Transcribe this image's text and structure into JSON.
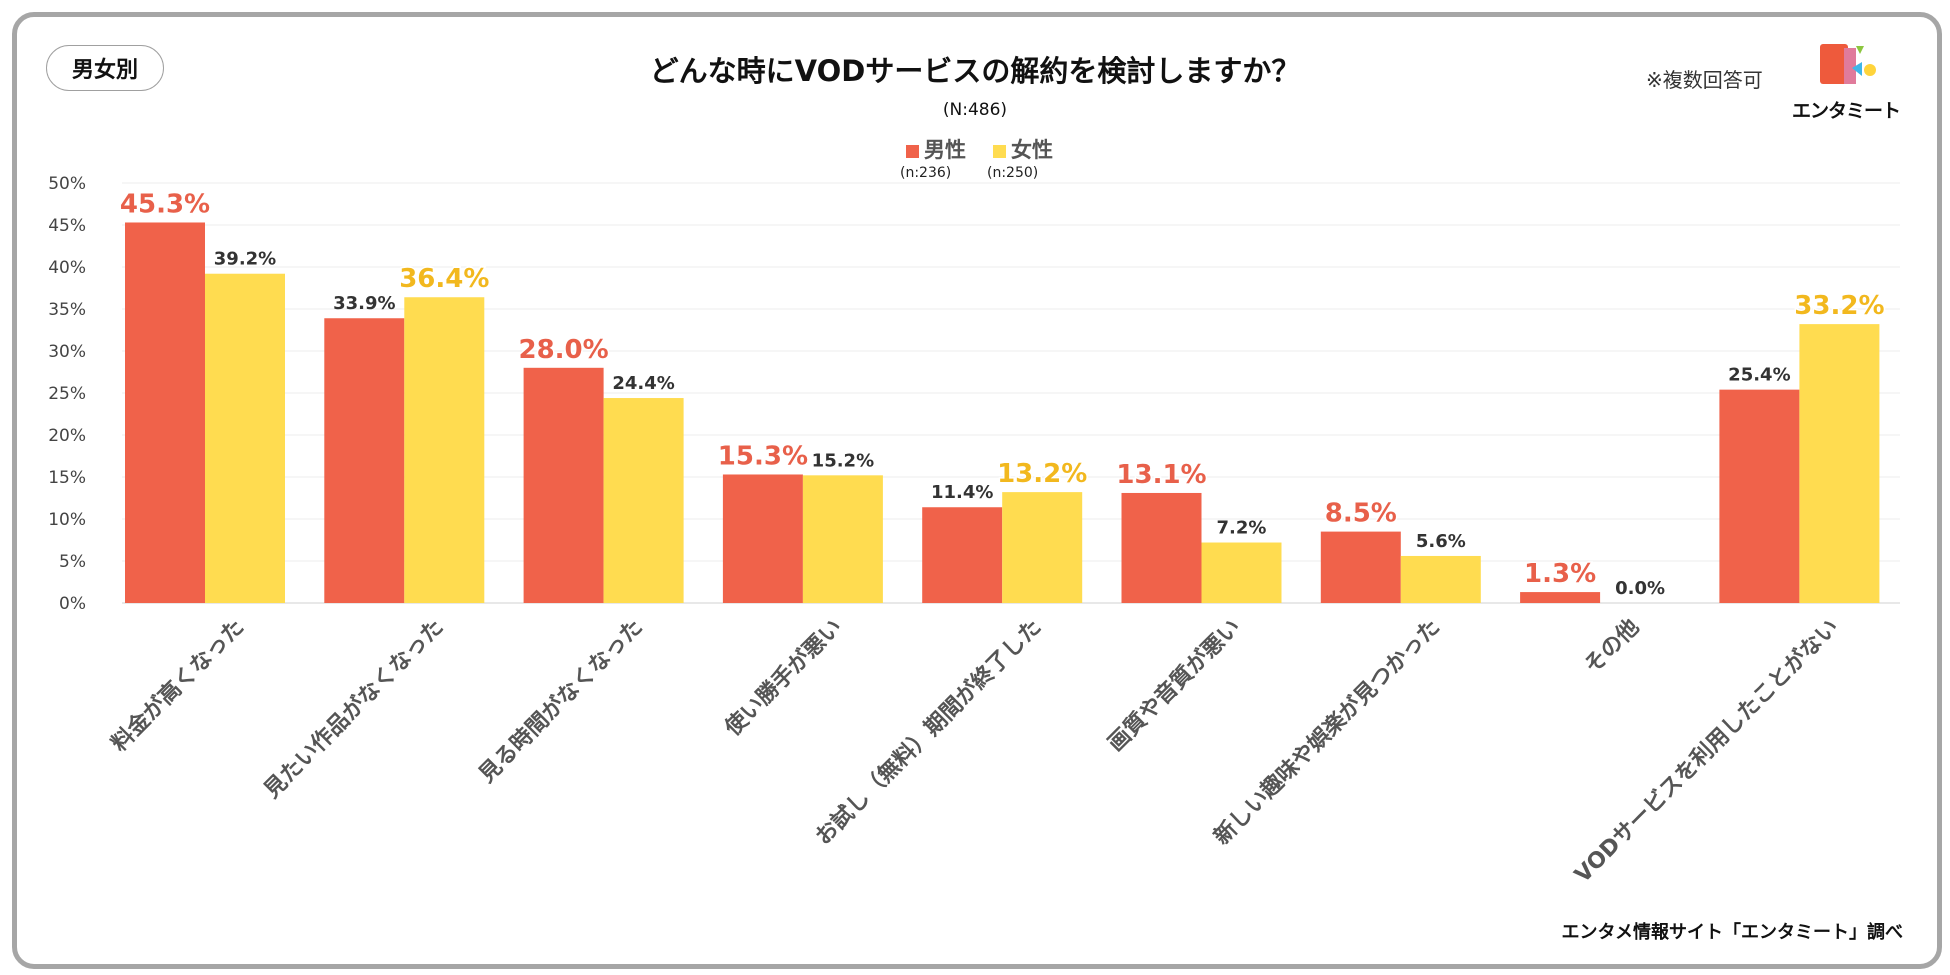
{
  "badge": "男女別",
  "note": "※複数回答可",
  "logo": {
    "text": "エンタミート"
  },
  "credit": "エンタメ情報サイト「エンタミート」調べ",
  "colors": {
    "male": "#F0624A",
    "female": "#FFDC50",
    "male_label": "#E8604A",
    "female_label": "#F2B81E"
  },
  "chart_data": {
    "type": "bar",
    "title": "どんな時にVODサービスの解約を検討しますか？",
    "subtitle": "(N:486)",
    "categories": [
      "料金が高くなった",
      "見たい作品がなくなった",
      "見る時間がなくなった",
      "使い勝手が悪い",
      "お試し（無料）期間が終了した",
      "画質や音質が悪い",
      "新しい趣味や娯楽が見つかった",
      "その他",
      "VODサービスを利用したことがない"
    ],
    "series": [
      {
        "name": "男性",
        "n": "(n:236)",
        "values": [
          45.3,
          33.9,
          28.0,
          15.3,
          11.4,
          13.1,
          8.5,
          1.3,
          25.4
        ],
        "labels": [
          "45.3%",
          "33.9%",
          "28.0%",
          "15.3%",
          "11.4%",
          "13.1%",
          "8.5%",
          "1.3%",
          "25.4%"
        ]
      },
      {
        "name": "女性",
        "n": "(n:250)",
        "values": [
          39.2,
          36.4,
          24.4,
          15.2,
          13.2,
          7.2,
          5.6,
          0.0,
          33.2
        ],
        "labels": [
          "39.2%",
          "36.4%",
          "24.4%",
          "15.2%",
          "13.2%",
          "7.2%",
          "5.6%",
          "0.0%",
          "33.2%"
        ]
      }
    ],
    "ylim": [
      0,
      50
    ],
    "yticks": [
      "0%",
      "5%",
      "10%",
      "15%",
      "20%",
      "25%",
      "30%",
      "35%",
      "40%",
      "45%",
      "50%"
    ],
    "grid": true,
    "legend": "top-center"
  }
}
